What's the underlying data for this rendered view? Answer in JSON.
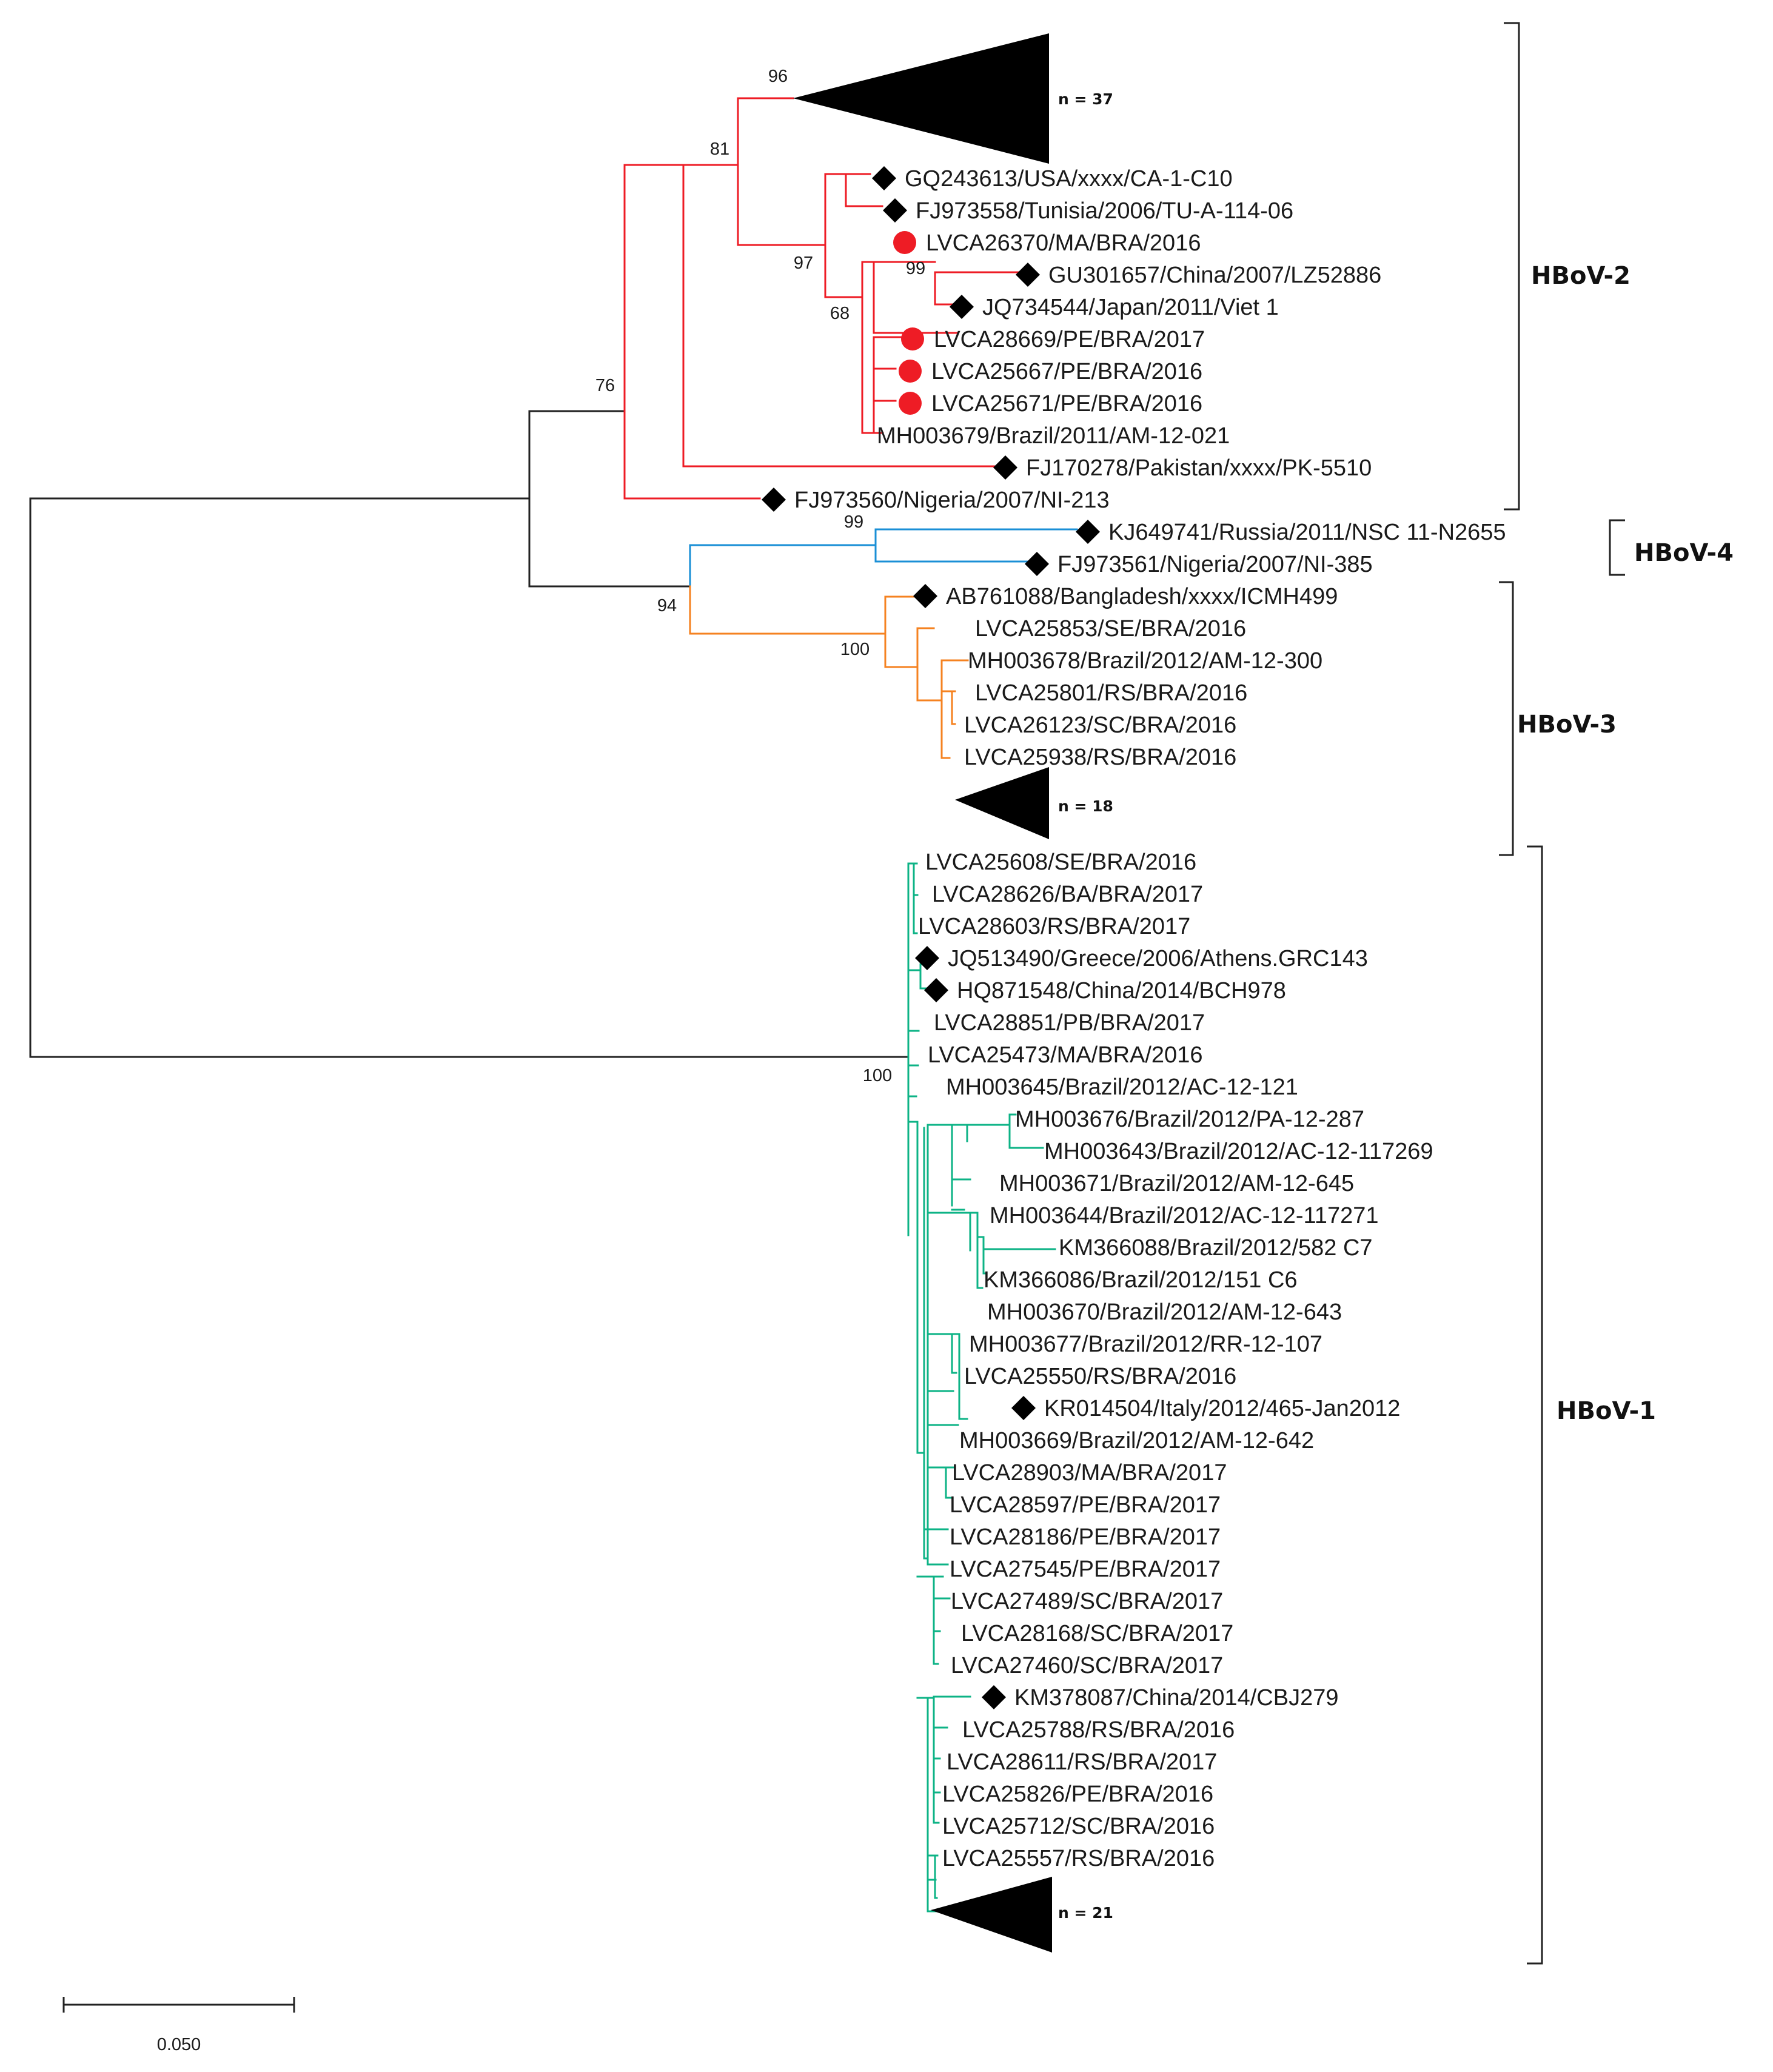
{
  "clade_colors": {
    "hbov2": "#ee1c25",
    "hbov4": "#1a8fd6",
    "hbov3": "#f58220",
    "hbov1": "#0db386",
    "root": "#222222"
  },
  "group_labels": [
    "HBoV-2",
    "HBoV-4",
    "HBoV-3",
    "HBoV-1"
  ],
  "collapsed_counts": [
    "n = 37",
    "n = 18",
    "n = 21"
  ],
  "bootstraps": [
    "96",
    "81",
    "97",
    "99",
    "68",
    "76",
    "99",
    "94",
    "100",
    "100"
  ],
  "scale_bar": {
    "label": "0.050",
    "value": 0.05
  },
  "hbov2_leaves": [
    "GQ243613/USA/xxxx/CA-1-C10",
    "FJ973558/Tunisia/2006/TU-A-114-06",
    "LVCA26370/MA/BRA/2016",
    "GU301657/China/2007/LZ52886",
    "JQ734544/Japan/2011/Viet 1",
    "LVCA28669/PE/BRA/2017",
    "LVCA25667/PE/BRA/2016",
    "LVCA25671/PE/BRA/2016",
    "MH003679/Brazil/2011/AM-12-021",
    "FJ170278/Pakistan/xxxx/PK-5510",
    "FJ973560/Nigeria/2007/NI-213"
  ],
  "hbov4_leaves": [
    "KJ649741/Russia/2011/NSC 11-N2655",
    "FJ973561/Nigeria/2007/NI-385"
  ],
  "hbov3_leaves": [
    "AB761088/Bangladesh/xxxx/ICMH499",
    "LVCA25853/SE/BRA/2016",
    "MH003678/Brazil/2012/AM-12-300",
    "LVCA25801/RS/BRA/2016",
    "LVCA26123/SC/BRA/2016",
    "LVCA25938/RS/BRA/2016"
  ],
  "hbov1_leaves": [
    "LVCA25608/SE/BRA/2016",
    "LVCA28626/BA/BRA/2017",
    "LVCA28603/RS/BRA/2017",
    "JQ513490/Greece/2006/Athens.GRC143",
    "HQ871548/China/2014/BCH978",
    "LVCA28851/PB/BRA/2017",
    "LVCA25473/MA/BRA/2016",
    "MH003645/Brazil/2012/AC-12-121",
    "MH003676/Brazil/2012/PA-12-287",
    "MH003643/Brazil/2012/AC-12-117269",
    "MH003671/Brazil/2012/AM-12-645",
    "MH003644/Brazil/2012/AC-12-117271",
    "KM366088/Brazil/2012/582 C7",
    "KM366086/Brazil/2012/151 C6",
    "MH003670/Brazil/2012/AM-12-643",
    "MH003677/Brazil/2012/RR-12-107",
    "LVCA25550/RS/BRA/2016",
    "KR014504/Italy/2012/465-Jan2012",
    "MH003669/Brazil/2012/AM-12-642",
    "LVCA28903/MA/BRA/2017",
    "LVCA28597/PE/BRA/2017",
    "LVCA28186/PE/BRA/2017",
    "LVCA27545/PE/BRA/2017",
    "LVCA27489/SC/BRA/2017",
    "LVCA28168/SC/BRA/2017",
    "LVCA27460/SC/BRA/2017",
    "KM378087/China/2014/CBJ279",
    "LVCA25788/RS/BRA/2016",
    "LVCA28611/RS/BRA/2017",
    "LVCA25826/PE/BRA/2016",
    "LVCA25712/SC/BRA/2016",
    "LVCA25557/RS/BRA/2016"
  ]
}
